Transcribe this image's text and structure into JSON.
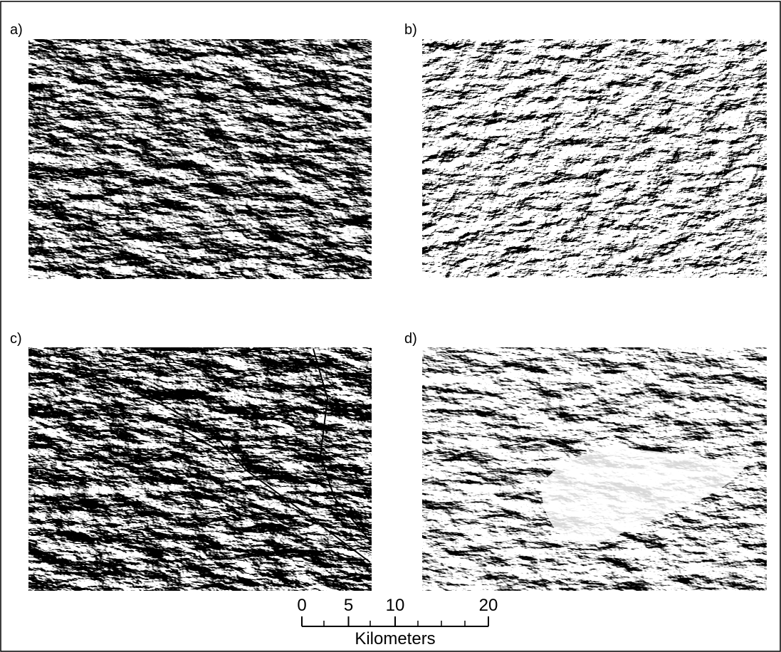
{
  "panels": [
    {
      "label": "a)"
    },
    {
      "label": "b)"
    },
    {
      "label": "c)"
    },
    {
      "label": "d)"
    }
  ],
  "scale_bar": {
    "xlim": [
      0,
      20
    ],
    "ticks": [
      0,
      5,
      10,
      20
    ],
    "unit": "Kilometers"
  }
}
